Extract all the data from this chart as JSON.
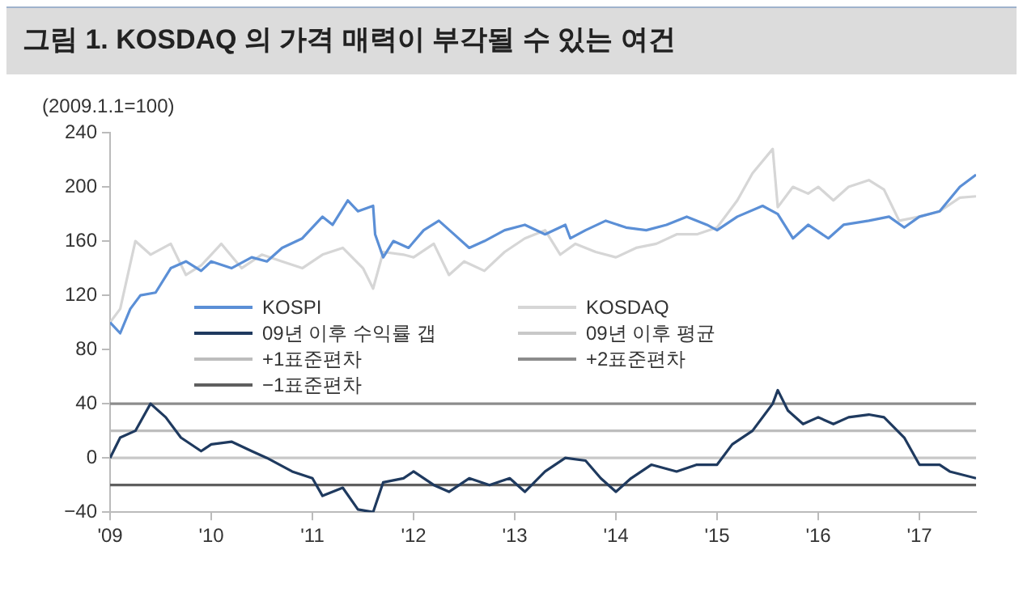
{
  "chart_data": {
    "type": "line",
    "title": "그림 1. KOSDAQ 의 가격 매력이 부각될 수 있는 여건",
    "ylabel": "(2009.1.1=100)",
    "xlim": [
      2009,
      2017.56
    ],
    "xticks": [
      {
        "value": 2009,
        "label": "'09"
      },
      {
        "value": 2010,
        "label": "'10"
      },
      {
        "value": 2011,
        "label": "'11"
      },
      {
        "value": 2012,
        "label": "'12"
      },
      {
        "value": 2013,
        "label": "'13"
      },
      {
        "value": 2014,
        "label": "'14"
      },
      {
        "value": 2015,
        "label": "'15"
      },
      {
        "value": 2016,
        "label": "'16"
      },
      {
        "value": 2017,
        "label": "'17"
      }
    ],
    "ylim": [
      -40,
      240
    ],
    "yticks": [
      {
        "value": -40,
        "label": "−40"
      },
      0,
      40,
      80,
      120,
      160,
      200,
      240
    ],
    "grid": false,
    "legend": "center",
    "marker": "none",
    "line_style": "solid",
    "series": [
      {
        "name": "KOSPI",
        "color": "#5b8fd6",
        "x": [
          2009.0,
          2009.1,
          2009.2,
          2009.3,
          2009.45,
          2009.6,
          2009.75,
          2009.9,
          2010.0,
          2010.2,
          2010.4,
          2010.55,
          2010.7,
          2010.9,
          2011.1,
          2011.2,
          2011.35,
          2011.45,
          2011.6,
          2011.62,
          2011.7,
          2011.8,
          2011.95,
          2012.1,
          2012.25,
          2012.4,
          2012.55,
          2012.7,
          2012.9,
          2013.1,
          2013.3,
          2013.5,
          2013.55,
          2013.7,
          2013.9,
          2014.1,
          2014.3,
          2014.5,
          2014.7,
          2014.9,
          2015.0,
          2015.2,
          2015.45,
          2015.6,
          2015.75,
          2015.9,
          2016.1,
          2016.25,
          2016.5,
          2016.7,
          2016.85,
          2017.0,
          2017.2,
          2017.4,
          2017.56
        ],
        "values": [
          100,
          92,
          110,
          120,
          122,
          140,
          145,
          138,
          145,
          140,
          148,
          145,
          155,
          162,
          178,
          172,
          190,
          182,
          186,
          165,
          148,
          160,
          155,
          168,
          175,
          165,
          155,
          160,
          168,
          172,
          165,
          172,
          162,
          168,
          175,
          170,
          168,
          172,
          178,
          172,
          168,
          178,
          186,
          180,
          162,
          172,
          162,
          172,
          175,
          178,
          170,
          178,
          182,
          200,
          209
        ]
      },
      {
        "name": "KOSDAQ",
        "color": "#d6d6d6",
        "x": [
          2009.0,
          2009.1,
          2009.25,
          2009.4,
          2009.6,
          2009.75,
          2009.9,
          2010.1,
          2010.3,
          2010.5,
          2010.7,
          2010.9,
          2011.1,
          2011.3,
          2011.5,
          2011.6,
          2011.7,
          2011.9,
          2012.0,
          2012.2,
          2012.35,
          2012.5,
          2012.7,
          2012.9,
          2013.1,
          2013.3,
          2013.45,
          2013.6,
          2013.8,
          2014.0,
          2014.2,
          2014.4,
          2014.6,
          2014.8,
          2015.0,
          2015.2,
          2015.35,
          2015.55,
          2015.6,
          2015.75,
          2015.9,
          2016.0,
          2016.15,
          2016.3,
          2016.5,
          2016.65,
          2016.8,
          2017.0,
          2017.2,
          2017.4,
          2017.56
        ],
        "values": [
          100,
          110,
          160,
          150,
          158,
          135,
          142,
          158,
          140,
          150,
          145,
          140,
          150,
          155,
          140,
          125,
          152,
          150,
          148,
          158,
          135,
          145,
          138,
          152,
          162,
          168,
          150,
          158,
          152,
          148,
          155,
          158,
          165,
          165,
          170,
          190,
          210,
          228,
          185,
          200,
          195,
          200,
          190,
          200,
          205,
          198,
          175,
          178,
          182,
          192,
          193
        ]
      },
      {
        "name": "09년 이후 수익률 갭",
        "color": "#1f3a5f",
        "x": [
          2009.0,
          2009.1,
          2009.25,
          2009.4,
          2009.55,
          2009.7,
          2009.9,
          2010.0,
          2010.2,
          2010.4,
          2010.55,
          2010.8,
          2011.0,
          2011.1,
          2011.3,
          2011.45,
          2011.6,
          2011.7,
          2011.9,
          2012.0,
          2012.2,
          2012.35,
          2012.55,
          2012.75,
          2012.95,
          2013.1,
          2013.3,
          2013.5,
          2013.7,
          2013.85,
          2014.0,
          2014.15,
          2014.35,
          2014.6,
          2014.8,
          2015.0,
          2015.15,
          2015.35,
          2015.55,
          2015.6,
          2015.7,
          2015.85,
          2016.0,
          2016.15,
          2016.3,
          2016.5,
          2016.65,
          2016.85,
          2017.0,
          2017.2,
          2017.3,
          2017.56
        ],
        "values": [
          0,
          15,
          20,
          40,
          30,
          15,
          5,
          10,
          12,
          5,
          0,
          -10,
          -15,
          -28,
          -22,
          -38,
          -40,
          -18,
          -15,
          -10,
          -20,
          -25,
          -15,
          -20,
          -15,
          -25,
          -10,
          0,
          -2,
          -15,
          -25,
          -15,
          -5,
          -10,
          -5,
          -5,
          10,
          20,
          40,
          50,
          35,
          25,
          30,
          25,
          30,
          32,
          30,
          15,
          -5,
          -5,
          -10,
          -15
        ]
      },
      {
        "name": "09년 이후 평균",
        "color": "#c8c8c8",
        "x": [
          2009,
          2017.56
        ],
        "values": [
          0,
          0
        ]
      },
      {
        "name": "+1표준편차",
        "color": "#bdbdbd",
        "x": [
          2009,
          2017.56
        ],
        "values": [
          20,
          20
        ]
      },
      {
        "name": "+2표준편차",
        "color": "#8c8c8c",
        "x": [
          2009,
          2017.56
        ],
        "values": [
          40,
          40
        ]
      },
      {
        "name": "−1표준편차",
        "color": "#5f5f5f",
        "x": [
          2009,
          2017.56
        ],
        "values": [
          -20,
          -20
        ]
      }
    ]
  }
}
